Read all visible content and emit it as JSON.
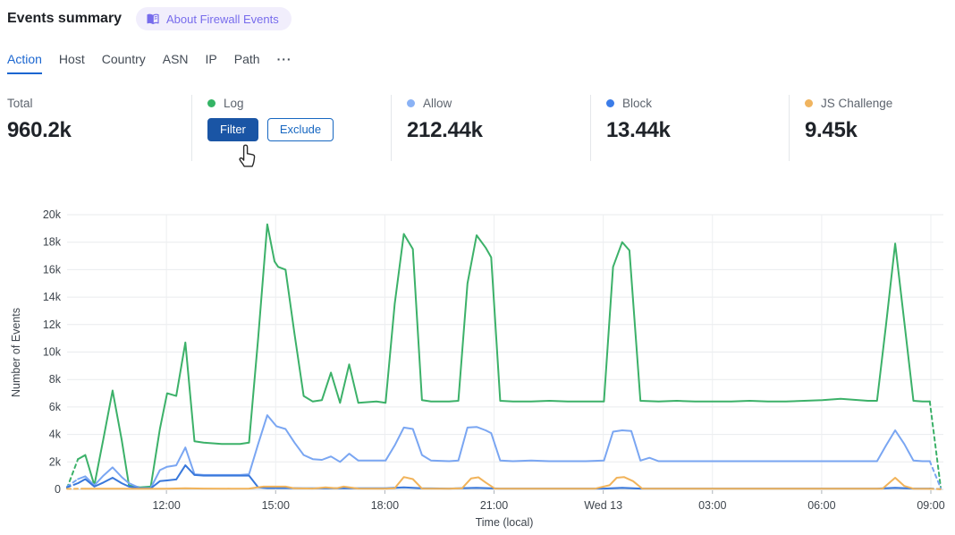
{
  "header": {
    "title": "Events summary",
    "about_badge": "About Firewall Events"
  },
  "tabs": {
    "items": [
      "Action",
      "Host",
      "Country",
      "ASN",
      "IP",
      "Path"
    ],
    "active": "Action",
    "more": "···"
  },
  "cards": [
    {
      "label": "Total",
      "value": "960.2k"
    },
    {
      "label": "Log",
      "color": "#34b465",
      "buttons": {
        "filter": "Filter",
        "exclude": "Exclude"
      }
    },
    {
      "label": "Allow",
      "value": "212.44k",
      "color": "#8ab2f5"
    },
    {
      "label": "Block",
      "value": "13.44k",
      "color": "#3b7ce8"
    },
    {
      "label": "JS Challenge",
      "value": "9.45k",
      "color": "#f0b45f"
    }
  ],
  "chart_data": {
    "type": "line",
    "xlabel": "Time (local)",
    "ylabel": "Number of Events",
    "ylim": [
      0,
      20000
    ],
    "grid": true,
    "x_unit": "hours since 09:15 Tue",
    "y_unit": "thousands of events",
    "y_ticks": [
      {
        "v": 0,
        "label": "0"
      },
      {
        "v": 2,
        "label": "2k"
      },
      {
        "v": 4,
        "label": "4k"
      },
      {
        "v": 6,
        "label": "6k"
      },
      {
        "v": 8,
        "label": "8k"
      },
      {
        "v": 10,
        "label": "10k"
      },
      {
        "v": 12,
        "label": "12k"
      },
      {
        "v": 14,
        "label": "14k"
      },
      {
        "v": 16,
        "label": "16k"
      },
      {
        "v": 18,
        "label": "18k"
      },
      {
        "v": 20,
        "label": "20k"
      }
    ],
    "x_ticks": [
      {
        "t": 2.73,
        "label": "12:00"
      },
      {
        "t": 5.73,
        "label": "15:00"
      },
      {
        "t": 8.73,
        "label": "18:00"
      },
      {
        "t": 11.73,
        "label": "21:00"
      },
      {
        "t": 14.73,
        "label": "Wed 13"
      },
      {
        "t": 17.73,
        "label": "03:00"
      },
      {
        "t": 20.73,
        "label": "06:00"
      },
      {
        "t": 23.73,
        "label": "09:00"
      }
    ],
    "series": [
      {
        "name": "Log",
        "color": "#3cb169",
        "points": [
          [
            0,
            0.1
          ],
          [
            0.3,
            2.2
          ],
          [
            0.5,
            2.5
          ],
          [
            0.75,
            0.3
          ],
          [
            1.0,
            3.7
          ],
          [
            1.25,
            7.2
          ],
          [
            1.5,
            3.6
          ],
          [
            1.7,
            0.3
          ],
          [
            2.0,
            0.15
          ],
          [
            2.3,
            0.2
          ],
          [
            2.55,
            4.4
          ],
          [
            2.75,
            7.0
          ],
          [
            3.0,
            6.8
          ],
          [
            3.25,
            10.7
          ],
          [
            3.5,
            3.5
          ],
          [
            3.75,
            3.4
          ],
          [
            4.25,
            3.3
          ],
          [
            4.75,
            3.3
          ],
          [
            5.0,
            3.4
          ],
          [
            5.25,
            11.0
          ],
          [
            5.5,
            19.3
          ],
          [
            5.7,
            16.6
          ],
          [
            5.8,
            16.2
          ],
          [
            6.0,
            16.0
          ],
          [
            6.25,
            11.3
          ],
          [
            6.5,
            6.8
          ],
          [
            6.75,
            6.4
          ],
          [
            7.0,
            6.5
          ],
          [
            7.25,
            8.5
          ],
          [
            7.5,
            6.3
          ],
          [
            7.75,
            9.1
          ],
          [
            8.0,
            6.3
          ],
          [
            8.5,
            6.4
          ],
          [
            8.75,
            6.3
          ],
          [
            9.0,
            13.5
          ],
          [
            9.25,
            18.6
          ],
          [
            9.5,
            17.5
          ],
          [
            9.75,
            6.5
          ],
          [
            10.0,
            6.4
          ],
          [
            10.5,
            6.4
          ],
          [
            10.75,
            6.45
          ],
          [
            11.0,
            15.0
          ],
          [
            11.25,
            18.5
          ],
          [
            11.5,
            17.6
          ],
          [
            11.65,
            16.9
          ],
          [
            11.9,
            6.45
          ],
          [
            12.25,
            6.4
          ],
          [
            12.75,
            6.4
          ],
          [
            13.25,
            6.45
          ],
          [
            13.75,
            6.4
          ],
          [
            14.25,
            6.4
          ],
          [
            14.75,
            6.4
          ],
          [
            15.0,
            16.2
          ],
          [
            15.25,
            18.0
          ],
          [
            15.45,
            17.4
          ],
          [
            15.75,
            6.45
          ],
          [
            16.25,
            6.4
          ],
          [
            16.75,
            6.45
          ],
          [
            17.25,
            6.4
          ],
          [
            17.75,
            6.4
          ],
          [
            18.25,
            6.4
          ],
          [
            18.75,
            6.45
          ],
          [
            19.25,
            6.4
          ],
          [
            19.75,
            6.4
          ],
          [
            20.25,
            6.45
          ],
          [
            20.75,
            6.5
          ],
          [
            21.25,
            6.6
          ],
          [
            21.5,
            6.55
          ],
          [
            21.75,
            6.5
          ],
          [
            22.0,
            6.45
          ],
          [
            22.25,
            6.45
          ],
          [
            22.5,
            12.0
          ],
          [
            22.75,
            17.9
          ],
          [
            23.0,
            12.2
          ],
          [
            23.25,
            6.45
          ],
          [
            23.5,
            6.4
          ],
          [
            23.7,
            6.4
          ],
          [
            24.0,
            0.15
          ]
        ]
      },
      {
        "name": "Allow",
        "color": "#7aa6f2",
        "points": [
          [
            0,
            0.2
          ],
          [
            0.3,
            0.75
          ],
          [
            0.5,
            0.95
          ],
          [
            0.75,
            0.3
          ],
          [
            1.0,
            1.0
          ],
          [
            1.25,
            1.6
          ],
          [
            1.5,
            0.9
          ],
          [
            1.7,
            0.45
          ],
          [
            2.0,
            0.1
          ],
          [
            2.3,
            0.1
          ],
          [
            2.55,
            1.4
          ],
          [
            2.75,
            1.65
          ],
          [
            3.0,
            1.75
          ],
          [
            3.25,
            3.05
          ],
          [
            3.5,
            1.1
          ],
          [
            3.75,
            1.05
          ],
          [
            4.25,
            1.05
          ],
          [
            4.75,
            1.05
          ],
          [
            5.0,
            1.1
          ],
          [
            5.25,
            3.3
          ],
          [
            5.5,
            5.4
          ],
          [
            5.75,
            4.6
          ],
          [
            6.0,
            4.4
          ],
          [
            6.25,
            3.4
          ],
          [
            6.5,
            2.5
          ],
          [
            6.75,
            2.2
          ],
          [
            7.0,
            2.15
          ],
          [
            7.25,
            2.4
          ],
          [
            7.5,
            2.0
          ],
          [
            7.75,
            2.6
          ],
          [
            8.0,
            2.1
          ],
          [
            8.5,
            2.1
          ],
          [
            8.75,
            2.1
          ],
          [
            9.0,
            3.2
          ],
          [
            9.25,
            4.5
          ],
          [
            9.5,
            4.4
          ],
          [
            9.75,
            2.5
          ],
          [
            10.0,
            2.1
          ],
          [
            10.5,
            2.05
          ],
          [
            10.75,
            2.1
          ],
          [
            11.0,
            4.5
          ],
          [
            11.25,
            4.55
          ],
          [
            11.5,
            4.3
          ],
          [
            11.65,
            4.1
          ],
          [
            11.9,
            2.1
          ],
          [
            12.25,
            2.05
          ],
          [
            12.75,
            2.1
          ],
          [
            13.25,
            2.05
          ],
          [
            13.75,
            2.05
          ],
          [
            14.25,
            2.05
          ],
          [
            14.75,
            2.1
          ],
          [
            15.0,
            4.2
          ],
          [
            15.25,
            4.3
          ],
          [
            15.5,
            4.25
          ],
          [
            15.75,
            2.1
          ],
          [
            16.0,
            2.3
          ],
          [
            16.25,
            2.05
          ],
          [
            16.75,
            2.05
          ],
          [
            17.25,
            2.05
          ],
          [
            17.75,
            2.05
          ],
          [
            18.25,
            2.05
          ],
          [
            18.75,
            2.05
          ],
          [
            19.25,
            2.05
          ],
          [
            19.75,
            2.05
          ],
          [
            20.25,
            2.05
          ],
          [
            20.75,
            2.05
          ],
          [
            21.25,
            2.05
          ],
          [
            21.75,
            2.05
          ],
          [
            22.25,
            2.05
          ],
          [
            22.5,
            3.2
          ],
          [
            22.75,
            4.3
          ],
          [
            23.0,
            3.3
          ],
          [
            23.25,
            2.1
          ],
          [
            23.5,
            2.05
          ],
          [
            23.7,
            2.05
          ],
          [
            24.0,
            0.1
          ]
        ]
      },
      {
        "name": "Block",
        "color": "#3978db",
        "points": [
          [
            0,
            0.15
          ],
          [
            0.3,
            0.45
          ],
          [
            0.5,
            0.75
          ],
          [
            0.75,
            0.2
          ],
          [
            1.0,
            0.5
          ],
          [
            1.25,
            0.85
          ],
          [
            1.5,
            0.45
          ],
          [
            1.7,
            0.2
          ],
          [
            2.0,
            0.07
          ],
          [
            2.3,
            0.07
          ],
          [
            2.55,
            0.6
          ],
          [
            2.75,
            0.65
          ],
          [
            3.0,
            0.72
          ],
          [
            3.25,
            1.75
          ],
          [
            3.5,
            1.05
          ],
          [
            3.75,
            1.0
          ],
          [
            4.25,
            1.0
          ],
          [
            4.75,
            1.0
          ],
          [
            5.0,
            1.0
          ],
          [
            5.25,
            0.15
          ],
          [
            5.5,
            0.1
          ],
          [
            6.0,
            0.1
          ],
          [
            6.5,
            0.08
          ],
          [
            7.0,
            0.08
          ],
          [
            7.5,
            0.08
          ],
          [
            8.0,
            0.08
          ],
          [
            8.75,
            0.08
          ],
          [
            9.25,
            0.15
          ],
          [
            9.75,
            0.08
          ],
          [
            10.5,
            0.06
          ],
          [
            11.25,
            0.12
          ],
          [
            11.9,
            0.06
          ],
          [
            12.75,
            0.06
          ],
          [
            13.75,
            0.06
          ],
          [
            14.75,
            0.06
          ],
          [
            15.25,
            0.12
          ],
          [
            15.75,
            0.06
          ],
          [
            16.75,
            0.06
          ],
          [
            17.75,
            0.06
          ],
          [
            18.75,
            0.06
          ],
          [
            19.75,
            0.06
          ],
          [
            20.75,
            0.06
          ],
          [
            21.75,
            0.06
          ],
          [
            22.25,
            0.06
          ],
          [
            22.75,
            0.12
          ],
          [
            23.25,
            0.06
          ],
          [
            23.7,
            0.06
          ],
          [
            24.0,
            0.02
          ]
        ]
      },
      {
        "name": "JS Challenge",
        "color": "#f1b35a",
        "points": [
          [
            0,
            0.04
          ],
          [
            0.5,
            0.05
          ],
          [
            1.0,
            0.05
          ],
          [
            1.5,
            0.05
          ],
          [
            2.0,
            0.04
          ],
          [
            2.75,
            0.05
          ],
          [
            3.25,
            0.08
          ],
          [
            3.75,
            0.06
          ],
          [
            4.5,
            0.05
          ],
          [
            5.0,
            0.06
          ],
          [
            5.4,
            0.2
          ],
          [
            6.0,
            0.2
          ],
          [
            6.25,
            0.08
          ],
          [
            6.75,
            0.06
          ],
          [
            7.1,
            0.15
          ],
          [
            7.4,
            0.08
          ],
          [
            7.6,
            0.2
          ],
          [
            8.0,
            0.06
          ],
          [
            8.75,
            0.05
          ],
          [
            9.0,
            0.08
          ],
          [
            9.25,
            0.9
          ],
          [
            9.5,
            0.75
          ],
          [
            9.75,
            0.06
          ],
          [
            10.5,
            0.05
          ],
          [
            10.85,
            0.08
          ],
          [
            11.1,
            0.8
          ],
          [
            11.3,
            0.88
          ],
          [
            11.5,
            0.5
          ],
          [
            11.75,
            0.06
          ],
          [
            12.5,
            0.05
          ],
          [
            13.5,
            0.05
          ],
          [
            14.5,
            0.05
          ],
          [
            14.9,
            0.3
          ],
          [
            15.1,
            0.85
          ],
          [
            15.3,
            0.9
          ],
          [
            15.55,
            0.6
          ],
          [
            15.8,
            0.06
          ],
          [
            16.75,
            0.05
          ],
          [
            17.75,
            0.05
          ],
          [
            18.75,
            0.05
          ],
          [
            19.75,
            0.05
          ],
          [
            20.75,
            0.05
          ],
          [
            21.75,
            0.05
          ],
          [
            22.4,
            0.05
          ],
          [
            22.75,
            0.85
          ],
          [
            23.0,
            0.25
          ],
          [
            23.25,
            0.05
          ],
          [
            23.7,
            0.04
          ],
          [
            24.0,
            0.02
          ]
        ]
      }
    ]
  }
}
